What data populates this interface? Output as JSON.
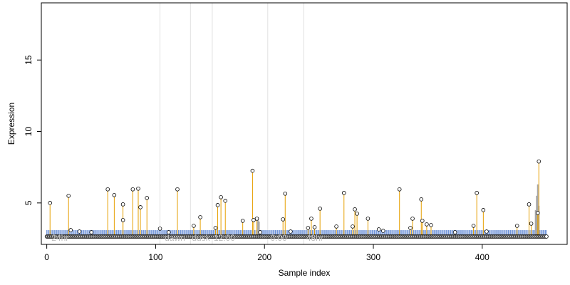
{
  "chart_data": {
    "type": "scatter",
    "title": "",
    "xlabel": "Sample index",
    "ylabel": "Expression",
    "xlim": [
      -5,
      478
    ],
    "ylim": [
      2.1,
      19
    ],
    "x_ticks": [
      0,
      100,
      200,
      300,
      400
    ],
    "x_tick_labels": [
      "0",
      "100",
      "200",
      "300",
      "400"
    ],
    "y_ticks": [
      5,
      10,
      15
    ],
    "y_tick_labels": [
      "5",
      "10",
      "15"
    ],
    "grid": false,
    "legend": "none",
    "baseline": 2.65,
    "n_samples": 460,
    "phase_lines": [
      104,
      132,
      152,
      203,
      236
    ],
    "phase_labels": [
      {
        "text": "24hr",
        "x": 3
      },
      {
        "text": "dawn",
        "x": 107
      },
      {
        "text": "dusk",
        "x": 132
      },
      {
        "text": "12:00",
        "x": 152
      },
      {
        "text": "0:00",
        "x": 204
      },
      {
        "text": "48hr",
        "x": 237
      }
    ],
    "peaks": [
      {
        "x": 3,
        "y": 5.0
      },
      {
        "x": 20,
        "y": 5.5
      },
      {
        "x": 56,
        "y": 5.95
      },
      {
        "x": 62,
        "y": 5.55
      },
      {
        "x": 70,
        "y": 4.9
      },
      {
        "x": 70,
        "y": 3.8
      },
      {
        "x": 79,
        "y": 5.95
      },
      {
        "x": 84,
        "y": 6.0
      },
      {
        "x": 86,
        "y": 4.7
      },
      {
        "x": 92,
        "y": 5.35
      },
      {
        "x": 120,
        "y": 5.95
      },
      {
        "x": 135,
        "y": 3.4
      },
      {
        "x": 141,
        "y": 4.0
      },
      {
        "x": 155,
        "y": 3.25
      },
      {
        "x": 157,
        "y": 4.85
      },
      {
        "x": 160,
        "y": 5.4
      },
      {
        "x": 164,
        "y": 5.15
      },
      {
        "x": 180,
        "y": 3.75
      },
      {
        "x": 189,
        "y": 7.25
      },
      {
        "x": 190,
        "y": 3.8
      },
      {
        "x": 193,
        "y": 3.9
      },
      {
        "x": 217,
        "y": 3.85
      },
      {
        "x": 219,
        "y": 5.65
      },
      {
        "x": 240,
        "y": 3.25
      },
      {
        "x": 243,
        "y": 3.9
      },
      {
        "x": 246,
        "y": 3.3
      },
      {
        "x": 251,
        "y": 4.6
      },
      {
        "x": 266,
        "y": 3.35
      },
      {
        "x": 273,
        "y": 5.7
      },
      {
        "x": 281,
        "y": 3.35
      },
      {
        "x": 283,
        "y": 4.55
      },
      {
        "x": 285,
        "y": 4.25
      },
      {
        "x": 295,
        "y": 3.9
      },
      {
        "x": 324,
        "y": 5.95
      },
      {
        "x": 334,
        "y": 3.25
      },
      {
        "x": 336,
        "y": 3.9
      },
      {
        "x": 344,
        "y": 5.25
      },
      {
        "x": 345,
        "y": 3.75
      },
      {
        "x": 349,
        "y": 3.5
      },
      {
        "x": 353,
        "y": 3.45
      },
      {
        "x": 392,
        "y": 3.4
      },
      {
        "x": 395,
        "y": 5.7
      },
      {
        "x": 401,
        "y": 4.5
      },
      {
        "x": 432,
        "y": 3.4
      },
      {
        "x": 443,
        "y": 4.9
      },
      {
        "x": 445,
        "y": 3.55
      },
      {
        "x": 451,
        "y": 4.3
      },
      {
        "x": 452,
        "y": 7.9
      }
    ],
    "minor_points": [
      {
        "x": 22,
        "y": 3.1
      },
      {
        "x": 30,
        "y": 3.0
      },
      {
        "x": 41,
        "y": 2.95
      },
      {
        "x": 104,
        "y": 3.2
      },
      {
        "x": 112,
        "y": 2.95
      },
      {
        "x": 196,
        "y": 2.95
      },
      {
        "x": 224,
        "y": 3.0
      },
      {
        "x": 305,
        "y": 3.15
      },
      {
        "x": 309,
        "y": 3.05
      },
      {
        "x": 375,
        "y": 2.95
      },
      {
        "x": 404,
        "y": 3.0
      }
    ],
    "gray_bars": [
      {
        "x": 194,
        "y": 4.0
      },
      {
        "x": 195,
        "y": 3.7
      },
      {
        "x": 449,
        "y": 4.5
      },
      {
        "x": 450,
        "y": 5.5
      },
      {
        "x": 451,
        "y": 6.3
      },
      {
        "x": 452,
        "y": 4.8
      }
    ],
    "colors": {
      "peak_stem": "#e69f00",
      "baseline_stem": "#6a8fd6",
      "gray_bar": "#a8a8a8",
      "phase_line": "#e0e0e0",
      "phase_label": "#bdbdbd",
      "point_fill": "#ffffff",
      "point_stroke": "#000000"
    }
  }
}
